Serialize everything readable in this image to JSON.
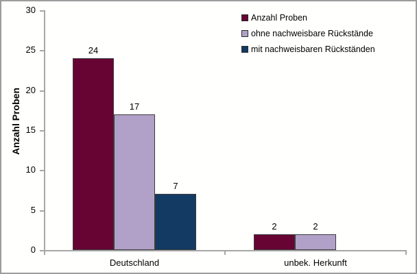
{
  "chart_data": {
    "type": "bar",
    "title": "",
    "ylabel": "Anzahl Proben",
    "xlabel": "",
    "ylim": [
      0,
      30
    ],
    "yticks": [
      0,
      5,
      10,
      15,
      20,
      25,
      30
    ],
    "categories": [
      "Deutschland",
      "unbek. Herkunft"
    ],
    "series": [
      {
        "name": "Anzahl Proben",
        "color": "#670434",
        "values": [
          24,
          2
        ]
      },
      {
        "name": "ohne nachweisbare Rückstände",
        "color": "#B1A0C7",
        "values": [
          17,
          2
        ]
      },
      {
        "name": "mit nachweisbaren Rückständen",
        "color": "#123A62",
        "values": [
          7,
          null
        ]
      }
    ],
    "data_labels": true,
    "grid": false,
    "legend_position": "top-right"
  },
  "colors": {
    "axis": "#A6A6A6",
    "bar_border": "#3C3C3C",
    "text": "#000000",
    "frame_border": "#9C9C9C",
    "background": "#FFFFFE"
  }
}
